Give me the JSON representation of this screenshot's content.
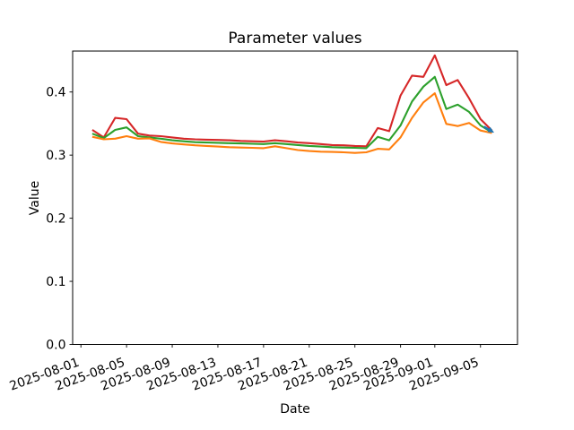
{
  "figure": {
    "title": "Parameter values",
    "background": "#ffffff"
  },
  "chart_data": {
    "type": "line",
    "title": "Parameter values",
    "xlabel": "Date",
    "ylabel": "Value",
    "grid": false,
    "legend": "none",
    "background": "#ffffff",
    "axes_color": "#000000",
    "ylim": [
      0.0,
      0.465
    ],
    "yticks": [
      0.0,
      0.1,
      0.2,
      0.3,
      0.4
    ],
    "ytick_labels": [
      "0.0",
      "0.1",
      "0.2",
      "0.3",
      "0.4"
    ],
    "xtick_labels": [
      "2025-08-01",
      "2025-08-05",
      "2025-08-09",
      "2025-08-13",
      "2025-08-17",
      "2025-08-21",
      "2025-08-25",
      "2025-08-29",
      "2025-09-01",
      "2025-09-05"
    ],
    "xtick_rotation_deg": 20,
    "x": [
      "2025-08-02",
      "2025-08-03",
      "2025-08-04",
      "2025-08-05",
      "2025-08-06",
      "2025-08-07",
      "2025-08-08",
      "2025-08-09",
      "2025-08-10",
      "2025-08-11",
      "2025-08-12",
      "2025-08-13",
      "2025-08-14",
      "2025-08-15",
      "2025-08-16",
      "2025-08-17",
      "2025-08-18",
      "2025-08-19",
      "2025-08-20",
      "2025-08-21",
      "2025-08-22",
      "2025-08-23",
      "2025-08-24",
      "2025-08-25",
      "2025-08-26",
      "2025-08-27",
      "2025-08-28",
      "2025-08-29",
      "2025-08-30",
      "2025-08-31",
      "2025-09-01",
      "2025-09-02",
      "2025-09-03",
      "2025-09-04",
      "2025-09-05",
      "2025-09-06"
    ],
    "series": [
      {
        "name": "red",
        "color": "#d62728",
        "values": [
          0.34,
          0.328,
          0.359,
          0.357,
          0.334,
          0.331,
          0.33,
          0.328,
          0.326,
          0.325,
          0.3245,
          0.324,
          0.3235,
          0.3225,
          0.322,
          0.3215,
          0.3235,
          0.322,
          0.32,
          0.319,
          0.3175,
          0.316,
          0.3155,
          0.3145,
          0.314,
          0.343,
          0.338,
          0.3945,
          0.426,
          0.424,
          0.458,
          0.411,
          0.419,
          0.39,
          0.357,
          0.339
        ]
      },
      {
        "name": "green",
        "color": "#2ca02c",
        "values": [
          0.334,
          0.327,
          0.34,
          0.344,
          0.33,
          0.328,
          0.326,
          0.3235,
          0.322,
          0.3205,
          0.32,
          0.3195,
          0.319,
          0.3185,
          0.318,
          0.3175,
          0.319,
          0.3175,
          0.316,
          0.3145,
          0.3135,
          0.3125,
          0.312,
          0.3115,
          0.311,
          0.329,
          0.3235,
          0.347,
          0.385,
          0.4085,
          0.424,
          0.373,
          0.38,
          0.3685,
          0.347,
          0.336
        ]
      },
      {
        "name": "orange",
        "color": "#ff7f0e",
        "values": [
          0.329,
          0.325,
          0.326,
          0.33,
          0.326,
          0.3265,
          0.321,
          0.3185,
          0.317,
          0.3155,
          0.3145,
          0.3135,
          0.3125,
          0.312,
          0.3115,
          0.311,
          0.314,
          0.311,
          0.308,
          0.3065,
          0.3055,
          0.305,
          0.3045,
          0.3035,
          0.3045,
          0.31,
          0.309,
          0.328,
          0.359,
          0.3835,
          0.398,
          0.3495,
          0.346,
          0.351,
          0.339,
          0.335
        ]
      }
    ],
    "annotation": {
      "type": "arrow",
      "color": "#1f77b4",
      "tail_day_value": [
        35.3,
        0.345
      ],
      "tip_day_value": [
        36.2,
        0.3355
      ]
    }
  }
}
